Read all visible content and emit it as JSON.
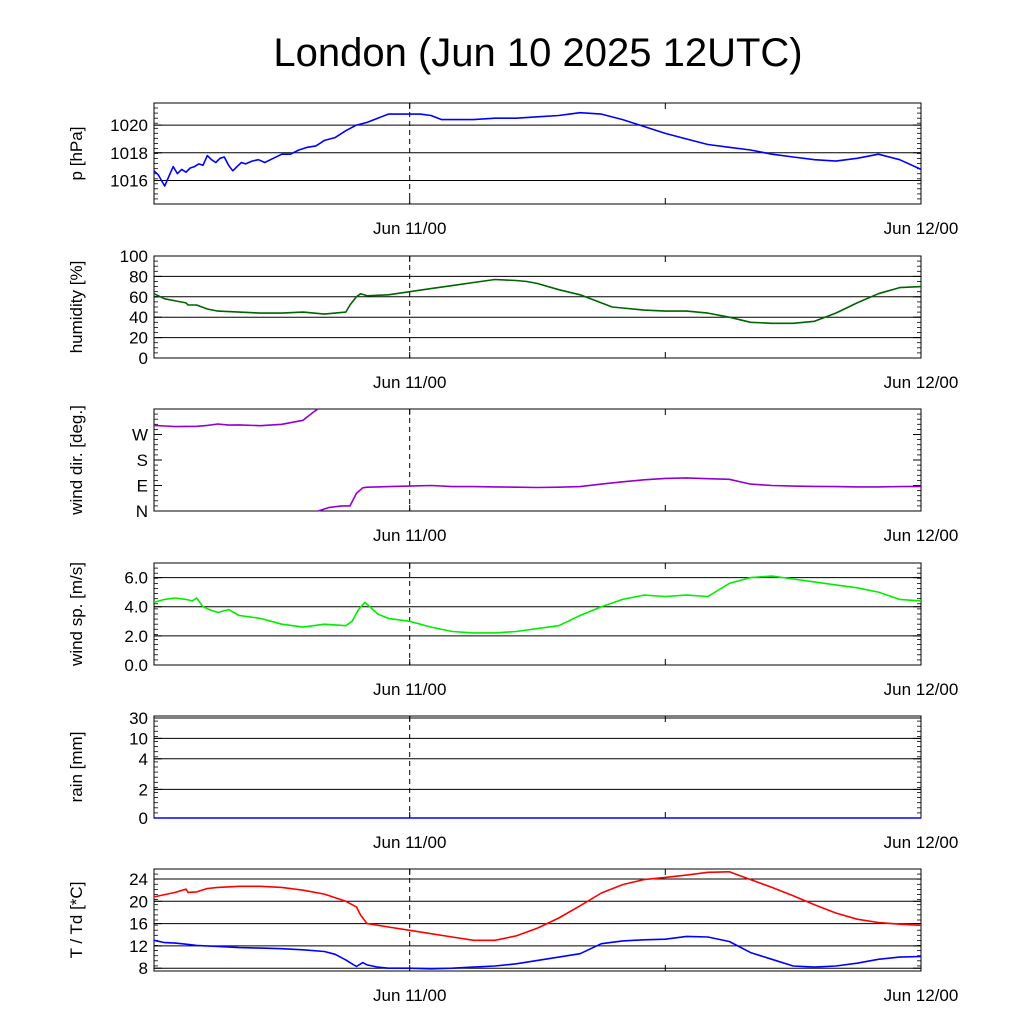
{
  "title": "London (Jun 10 2025 12UTC)",
  "chart_data": [
    {
      "type": "line",
      "id": "pressure",
      "ylabel": "p [hPa]",
      "ylim": [
        1014.3,
        1021.6
      ],
      "yticks": [
        {
          "v": 1016,
          "label": "1016"
        },
        {
          "v": 1018,
          "label": "1018"
        },
        {
          "v": 1020,
          "label": "1020"
        }
      ],
      "grid_lines": [
        1016,
        1018,
        1020
      ],
      "xlim": [
        0,
        36
      ],
      "xticks": [
        12,
        24,
        36
      ],
      "xtick_labels": [
        "Jun 11/00",
        "Jun 12/00"
      ],
      "xtick_label_at": [
        12,
        36
      ],
      "marker_line_x": 12,
      "series": [
        {
          "color": "#0000ff",
          "x": [
            0,
            0.2,
            0.35,
            0.5,
            0.7,
            0.9,
            1.1,
            1.3,
            1.5,
            1.7,
            1.9,
            2.1,
            2.3,
            2.5,
            2.7,
            2.9,
            3.1,
            3.3,
            3.5,
            3.7,
            3.9,
            4.1,
            4.3,
            4.6,
            4.9,
            5.2,
            5.6,
            6,
            6.4,
            6.8,
            7.2,
            7.6,
            8,
            8.5,
            9,
            9.5,
            10,
            10.5,
            11,
            11.5,
            12,
            12.5,
            13,
            13.5,
            14,
            15,
            16,
            17,
            18,
            19,
            19.5,
            20,
            21,
            22,
            23,
            24,
            25,
            26,
            27,
            28,
            29,
            30,
            31,
            32,
            33,
            34,
            35,
            36
          ],
          "y": [
            1016.7,
            1016.4,
            1016.0,
            1015.6,
            1016.3,
            1017.0,
            1016.5,
            1016.8,
            1016.6,
            1016.9,
            1017.0,
            1017.2,
            1017.1,
            1017.8,
            1017.5,
            1017.3,
            1017.6,
            1017.7,
            1017.1,
            1016.7,
            1017.0,
            1017.3,
            1017.2,
            1017.4,
            1017.5,
            1017.3,
            1017.6,
            1017.9,
            1017.9,
            1018.2,
            1018.4,
            1018.5,
            1018.9,
            1019.1,
            1019.6,
            1020.0,
            1020.2,
            1020.5,
            1020.8,
            1020.8,
            1020.8,
            1020.8,
            1020.7,
            1020.4,
            1020.4,
            1020.4,
            1020.5,
            1020.5,
            1020.6,
            1020.7,
            1020.8,
            1020.9,
            1020.8,
            1020.4,
            1019.9,
            1019.4,
            1019.0,
            1018.6,
            1018.4,
            1018.2,
            1017.9,
            1017.7,
            1017.5,
            1017.4,
            1017.6,
            1017.9,
            1017.5,
            1016.8
          ]
        }
      ]
    },
    {
      "type": "line",
      "id": "humidity",
      "ylabel": "humidity [%]",
      "ylim": [
        0,
        100
      ],
      "yticks": [
        {
          "v": 0,
          "label": "0"
        },
        {
          "v": 20,
          "label": "20"
        },
        {
          "v": 40,
          "label": "40"
        },
        {
          "v": 60,
          "label": "60"
        },
        {
          "v": 80,
          "label": "80"
        },
        {
          "v": 100,
          "label": "100"
        }
      ],
      "grid_lines": [
        0,
        20,
        40,
        60,
        80,
        100
      ],
      "xlim": [
        0,
        36
      ],
      "xticks": [
        12,
        24,
        36
      ],
      "xtick_labels": [
        "Jun 11/00",
        "Jun 12/00"
      ],
      "xtick_label_at": [
        12,
        36
      ],
      "marker_line_x": 12,
      "series": [
        {
          "color": "#006400",
          "x": [
            0,
            0.5,
            1,
            1.5,
            1.6,
            2,
            2.5,
            3,
            4,
            5,
            6,
            7,
            7.5,
            8,
            9,
            9.2,
            9.5,
            9.7,
            10,
            11,
            12,
            13,
            14,
            15,
            16,
            17,
            17.5,
            18,
            19,
            20,
            21,
            21.5,
            22,
            23,
            24,
            25,
            26,
            27,
            28,
            29,
            30,
            31,
            32,
            33,
            34,
            35,
            36
          ],
          "y": [
            63,
            58,
            56,
            54,
            52,
            52,
            48,
            46,
            45,
            44,
            44,
            45,
            44,
            43,
            45,
            52,
            60,
            63,
            61,
            62,
            65,
            68,
            71,
            74,
            77,
            76,
            75,
            73,
            67,
            62,
            54,
            50,
            49,
            47,
            46,
            46,
            44,
            40,
            35,
            34,
            34,
            36,
            44,
            54,
            63,
            69,
            70
          ]
        }
      ]
    },
    {
      "type": "line",
      "id": "wind_direction",
      "ylabel": "wind dir. [deg.]",
      "ylim": [
        0,
        360
      ],
      "yticks": [
        {
          "v": 0,
          "label": "N"
        },
        {
          "v": 90,
          "label": "E"
        },
        {
          "v": 180,
          "label": "S"
        },
        {
          "v": 270,
          "label": "W"
        }
      ],
      "grid_lines": [],
      "xlim": [
        0,
        36
      ],
      "xticks": [
        12,
        24,
        36
      ],
      "xtick_labels": [
        "Jun 11/00",
        "Jun 12/00"
      ],
      "xtick_label_at": [
        12,
        36
      ],
      "marker_line_x": 12,
      "series": [
        {
          "color": "#9400d3",
          "x": [
            0,
            0.5,
            1,
            2,
            2.5,
            3,
            3.5,
            4,
            5,
            6,
            7,
            7.5,
            7.7
          ],
          "y": [
            302,
            300,
            298,
            299,
            302,
            307,
            303,
            304,
            301,
            306,
            320,
            350,
            360
          ]
        },
        {
          "color": "#9400d3",
          "x": [
            7.7,
            8.2,
            8.8,
            9.2,
            9.5,
            9.8,
            10,
            11,
            12,
            13,
            14,
            15,
            16,
            17,
            18,
            19,
            20,
            21,
            22,
            23,
            24,
            25,
            26,
            27,
            28,
            29,
            30,
            31,
            32,
            33,
            34,
            35,
            36
          ],
          "y": [
            0,
            12,
            18,
            18,
            62,
            82,
            84,
            86,
            88,
            90,
            86,
            86,
            85,
            84,
            83,
            84,
            86,
            95,
            103,
            110,
            115,
            117,
            114,
            112,
            95,
            90,
            88,
            87,
            86,
            85,
            85,
            86,
            87
          ]
        }
      ]
    },
    {
      "type": "line",
      "id": "wind_speed",
      "ylabel": "wind sp. [m/s]",
      "ylim": [
        0,
        7
      ],
      "yticks": [
        {
          "v": 0,
          "label": "0.0"
        },
        {
          "v": 2,
          "label": "2.0"
        },
        {
          "v": 4,
          "label": "4.0"
        },
        {
          "v": 6,
          "label": "6.0"
        }
      ],
      "grid_lines": [
        0,
        2,
        4,
        6
      ],
      "xlim": [
        0,
        36
      ],
      "xticks": [
        12,
        24,
        36
      ],
      "xtick_labels": [
        "Jun 11/00",
        "Jun 12/00"
      ],
      "xtick_label_at": [
        12,
        36
      ],
      "marker_line_x": 12,
      "series": [
        {
          "color": "#00ee00",
          "x": [
            0,
            0.5,
            1,
            1.5,
            1.8,
            2,
            2.3,
            2.6,
            3,
            3.5,
            4,
            4.5,
            5,
            5.5,
            6,
            7,
            8,
            9,
            9.3,
            9.6,
            9.9,
            10.5,
            11,
            12,
            13,
            14,
            15,
            16,
            17,
            18,
            19,
            20,
            21,
            22,
            23,
            24,
            25,
            26,
            27,
            28,
            29,
            30,
            31,
            32,
            33,
            34,
            35,
            36
          ],
          "y": [
            4.3,
            4.5,
            4.6,
            4.5,
            4.4,
            4.6,
            4.0,
            3.8,
            3.6,
            3.8,
            3.4,
            3.3,
            3.2,
            3.0,
            2.8,
            2.6,
            2.8,
            2.7,
            3.0,
            3.8,
            4.3,
            3.5,
            3.2,
            3.0,
            2.6,
            2.3,
            2.2,
            2.2,
            2.3,
            2.5,
            2.7,
            3.4,
            4.0,
            4.5,
            4.8,
            4.7,
            4.8,
            4.7,
            5.6,
            6.0,
            6.1,
            5.9,
            5.7,
            5.5,
            5.3,
            5.0,
            4.5,
            4.4
          ]
        }
      ]
    },
    {
      "type": "line",
      "id": "rain",
      "ylabel": "rain [mm]",
      "ylim": [
        0,
        31
      ],
      "yscale": "pseudo-log",
      "yticks": [
        {
          "v": 0,
          "label": "0"
        },
        {
          "v": 2,
          "label": "2"
        },
        {
          "v": 4,
          "label": "4"
        },
        {
          "v": 10,
          "label": "10"
        },
        {
          "v": 30,
          "label": "30"
        }
      ],
      "grid_lines": [
        0,
        2,
        4,
        10,
        30
      ],
      "xlim": [
        0,
        36
      ],
      "xticks": [
        12,
        24,
        36
      ],
      "xtick_labels": [
        "Jun 11/00",
        "Jun 12/00"
      ],
      "xtick_label_at": [
        12,
        36
      ],
      "marker_line_x": 12,
      "series": [
        {
          "color": "#0000ff",
          "x": [
            0,
            36
          ],
          "y": [
            0,
            0
          ]
        }
      ]
    },
    {
      "type": "line",
      "id": "temperature",
      "ylabel": "T / Td [*C]",
      "ylim": [
        7.5,
        25.8
      ],
      "yticks": [
        {
          "v": 8,
          "label": "8"
        },
        {
          "v": 12,
          "label": "12"
        },
        {
          "v": 16,
          "label": "16"
        },
        {
          "v": 20,
          "label": "20"
        },
        {
          "v": 24,
          "label": "24"
        }
      ],
      "grid_lines": [
        8,
        12,
        16,
        20,
        24
      ],
      "xlim": [
        0,
        36
      ],
      "xticks": [
        12,
        24,
        36
      ],
      "xtick_labels": [
        "Jun 11/00",
        "Jun 12/00"
      ],
      "xtick_label_at": [
        12,
        36
      ],
      "marker_line_x": 12,
      "series": [
        {
          "color": "#ff0000",
          "name": "T",
          "x": [
            0,
            0.5,
            1,
            1.5,
            1.6,
            2,
            2.5,
            3,
            4,
            5,
            6,
            7,
            8,
            9,
            9.5,
            9.7,
            10,
            11,
            12,
            13,
            14,
            15,
            16,
            17,
            18,
            19,
            20,
            21,
            22,
            23,
            24,
            25,
            26,
            27,
            28,
            29,
            30,
            31,
            32,
            33,
            34,
            35,
            36
          ],
          "y": [
            20.8,
            21.2,
            21.6,
            22.2,
            21.6,
            21.7,
            22.3,
            22.5,
            22.7,
            22.7,
            22.5,
            22.0,
            21.3,
            20.0,
            19.0,
            17.5,
            16.0,
            15.4,
            14.8,
            14.2,
            13.6,
            13.0,
            13.0,
            13.8,
            15.2,
            17.0,
            19.2,
            21.5,
            23.0,
            23.9,
            24.3,
            24.7,
            25.2,
            25.3,
            23.9,
            22.5,
            21.0,
            19.4,
            17.9,
            16.8,
            16.2,
            15.9,
            15.7
          ]
        },
        {
          "color": "#0000ff",
          "name": "Td",
          "x": [
            0,
            0.5,
            1,
            1.5,
            2,
            3,
            4,
            5,
            6,
            7,
            8,
            8.5,
            9,
            9.2,
            9.5,
            9.8,
            10,
            10.5,
            11,
            12,
            13,
            14,
            15,
            16,
            17,
            18,
            19,
            20,
            21,
            22,
            23,
            24,
            25,
            26,
            27,
            28,
            29,
            30,
            31,
            32,
            33,
            34,
            35,
            36
          ],
          "y": [
            13.0,
            12.6,
            12.5,
            12.3,
            12.1,
            11.9,
            11.7,
            11.6,
            11.5,
            11.3,
            11.0,
            10.5,
            9.5,
            9.0,
            8.3,
            9.0,
            8.6,
            8.2,
            8.0,
            8.0,
            7.9,
            8.0,
            8.2,
            8.4,
            8.8,
            9.4,
            10.0,
            10.6,
            12.4,
            12.9,
            13.1,
            13.2,
            13.7,
            13.6,
            12.8,
            10.8,
            9.6,
            8.4,
            8.2,
            8.4,
            8.9,
            9.6,
            10.0,
            10.1
          ]
        }
      ]
    }
  ]
}
